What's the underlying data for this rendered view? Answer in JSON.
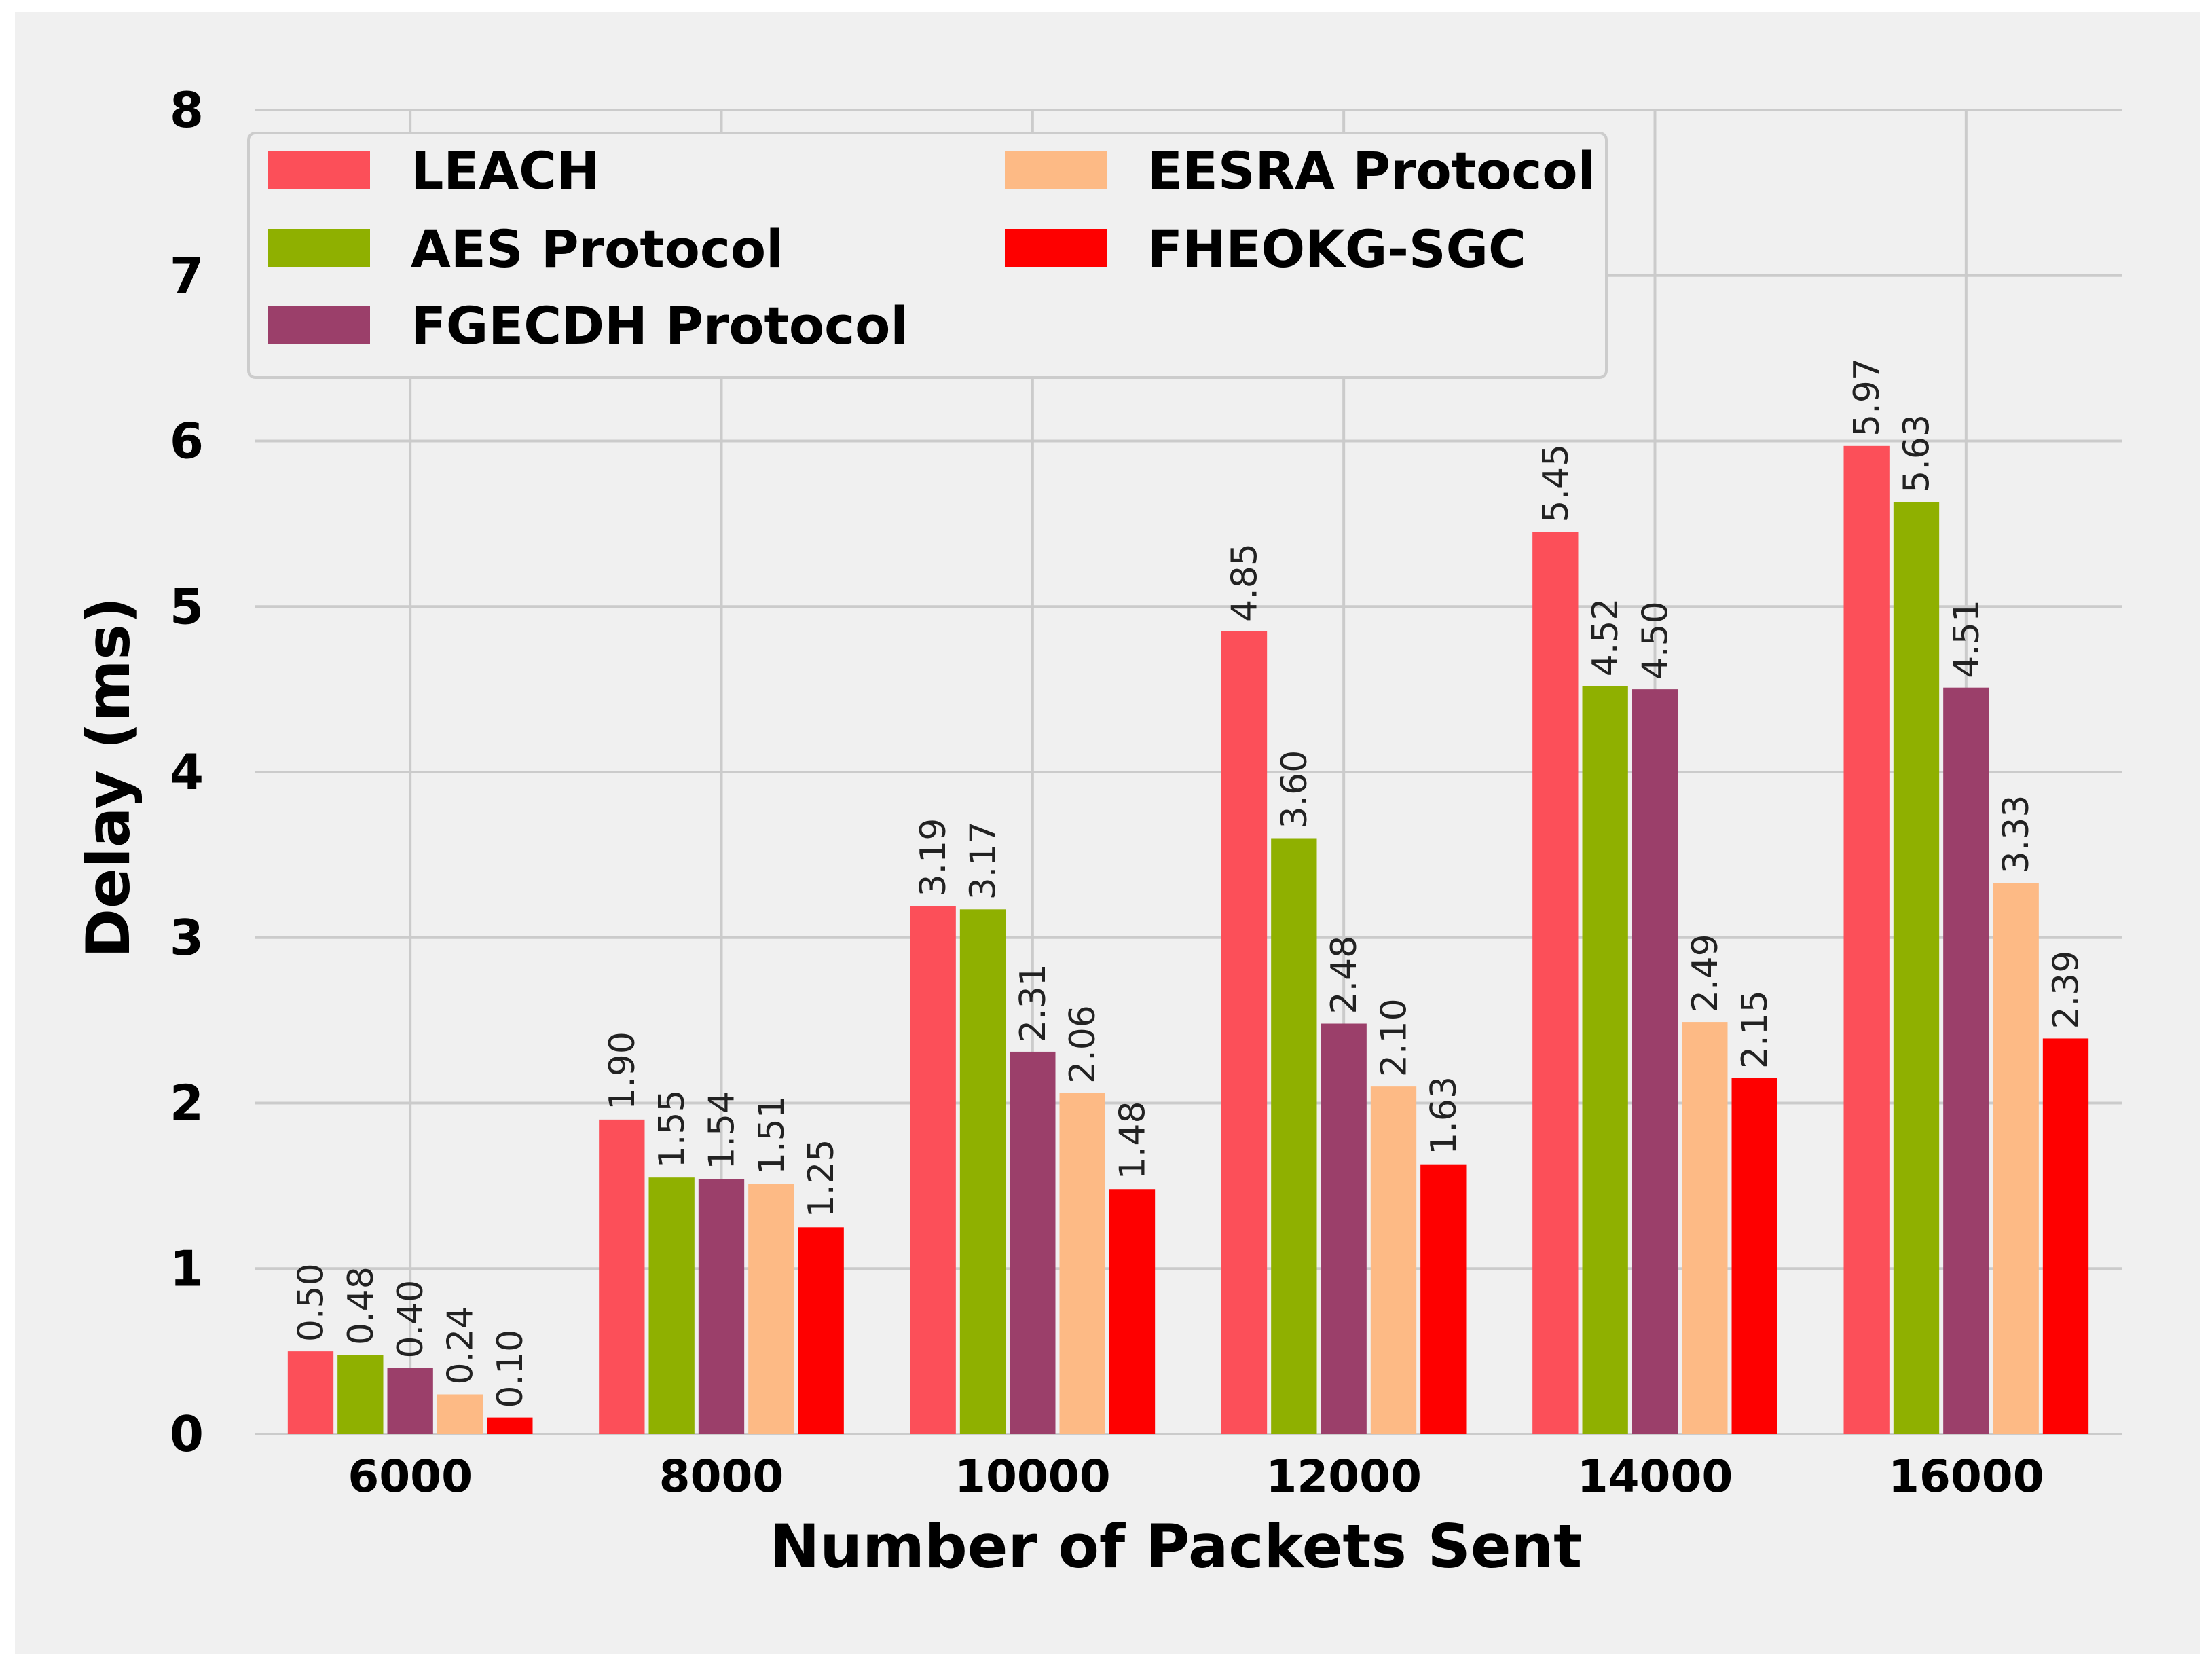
{
  "chart_data": {
    "type": "bar",
    "title": "",
    "xlabel": "Number of Packets Sent",
    "ylabel": "Delay (ms)",
    "categories": [
      "6000",
      "8000",
      "10000",
      "12000",
      "14000",
      "16000"
    ],
    "ylim": [
      0,
      8
    ],
    "yticks": [
      "0",
      "1",
      "2",
      "3",
      "4",
      "5",
      "6",
      "7",
      "8"
    ],
    "grid": true,
    "legend_position": "top-left",
    "series": [
      {
        "name": "LEACH",
        "color": "#fc4f59",
        "values": [
          0.5,
          1.9,
          3.19,
          4.85,
          5.45,
          5.97
        ],
        "labels": [
          "0.50",
          "1.90",
          "3.19",
          "4.85",
          "5.45",
          "5.97"
        ]
      },
      {
        "name": "AES Protocol",
        "color": "#8fb000",
        "values": [
          0.48,
          1.55,
          3.17,
          3.6,
          4.52,
          5.63
        ],
        "labels": [
          "0.48",
          "1.55",
          "3.17",
          "3.60",
          "4.52",
          "5.63"
        ]
      },
      {
        "name": "FGECDH Protocol",
        "color": "#9b3f6a",
        "values": [
          0.4,
          1.54,
          2.31,
          2.48,
          4.5,
          4.51
        ],
        "labels": [
          "0.40",
          "1.54",
          "2.31",
          "2.48",
          "4.50",
          "4.51"
        ]
      },
      {
        "name": "EESRA Protocol",
        "color": "#fdba85",
        "values": [
          0.24,
          1.51,
          2.06,
          2.1,
          2.49,
          3.33
        ],
        "labels": [
          "0.24",
          "1.51",
          "2.06",
          "2.10",
          "2.49",
          "3.33"
        ]
      },
      {
        "name": "FHEOKG-SGC",
        "color": "#fe0000",
        "values": [
          0.1,
          1.25,
          1.48,
          1.63,
          2.15,
          2.39
        ],
        "labels": [
          "0.10",
          "1.25",
          "1.48",
          "1.63",
          "2.15",
          "2.39"
        ]
      }
    ]
  }
}
